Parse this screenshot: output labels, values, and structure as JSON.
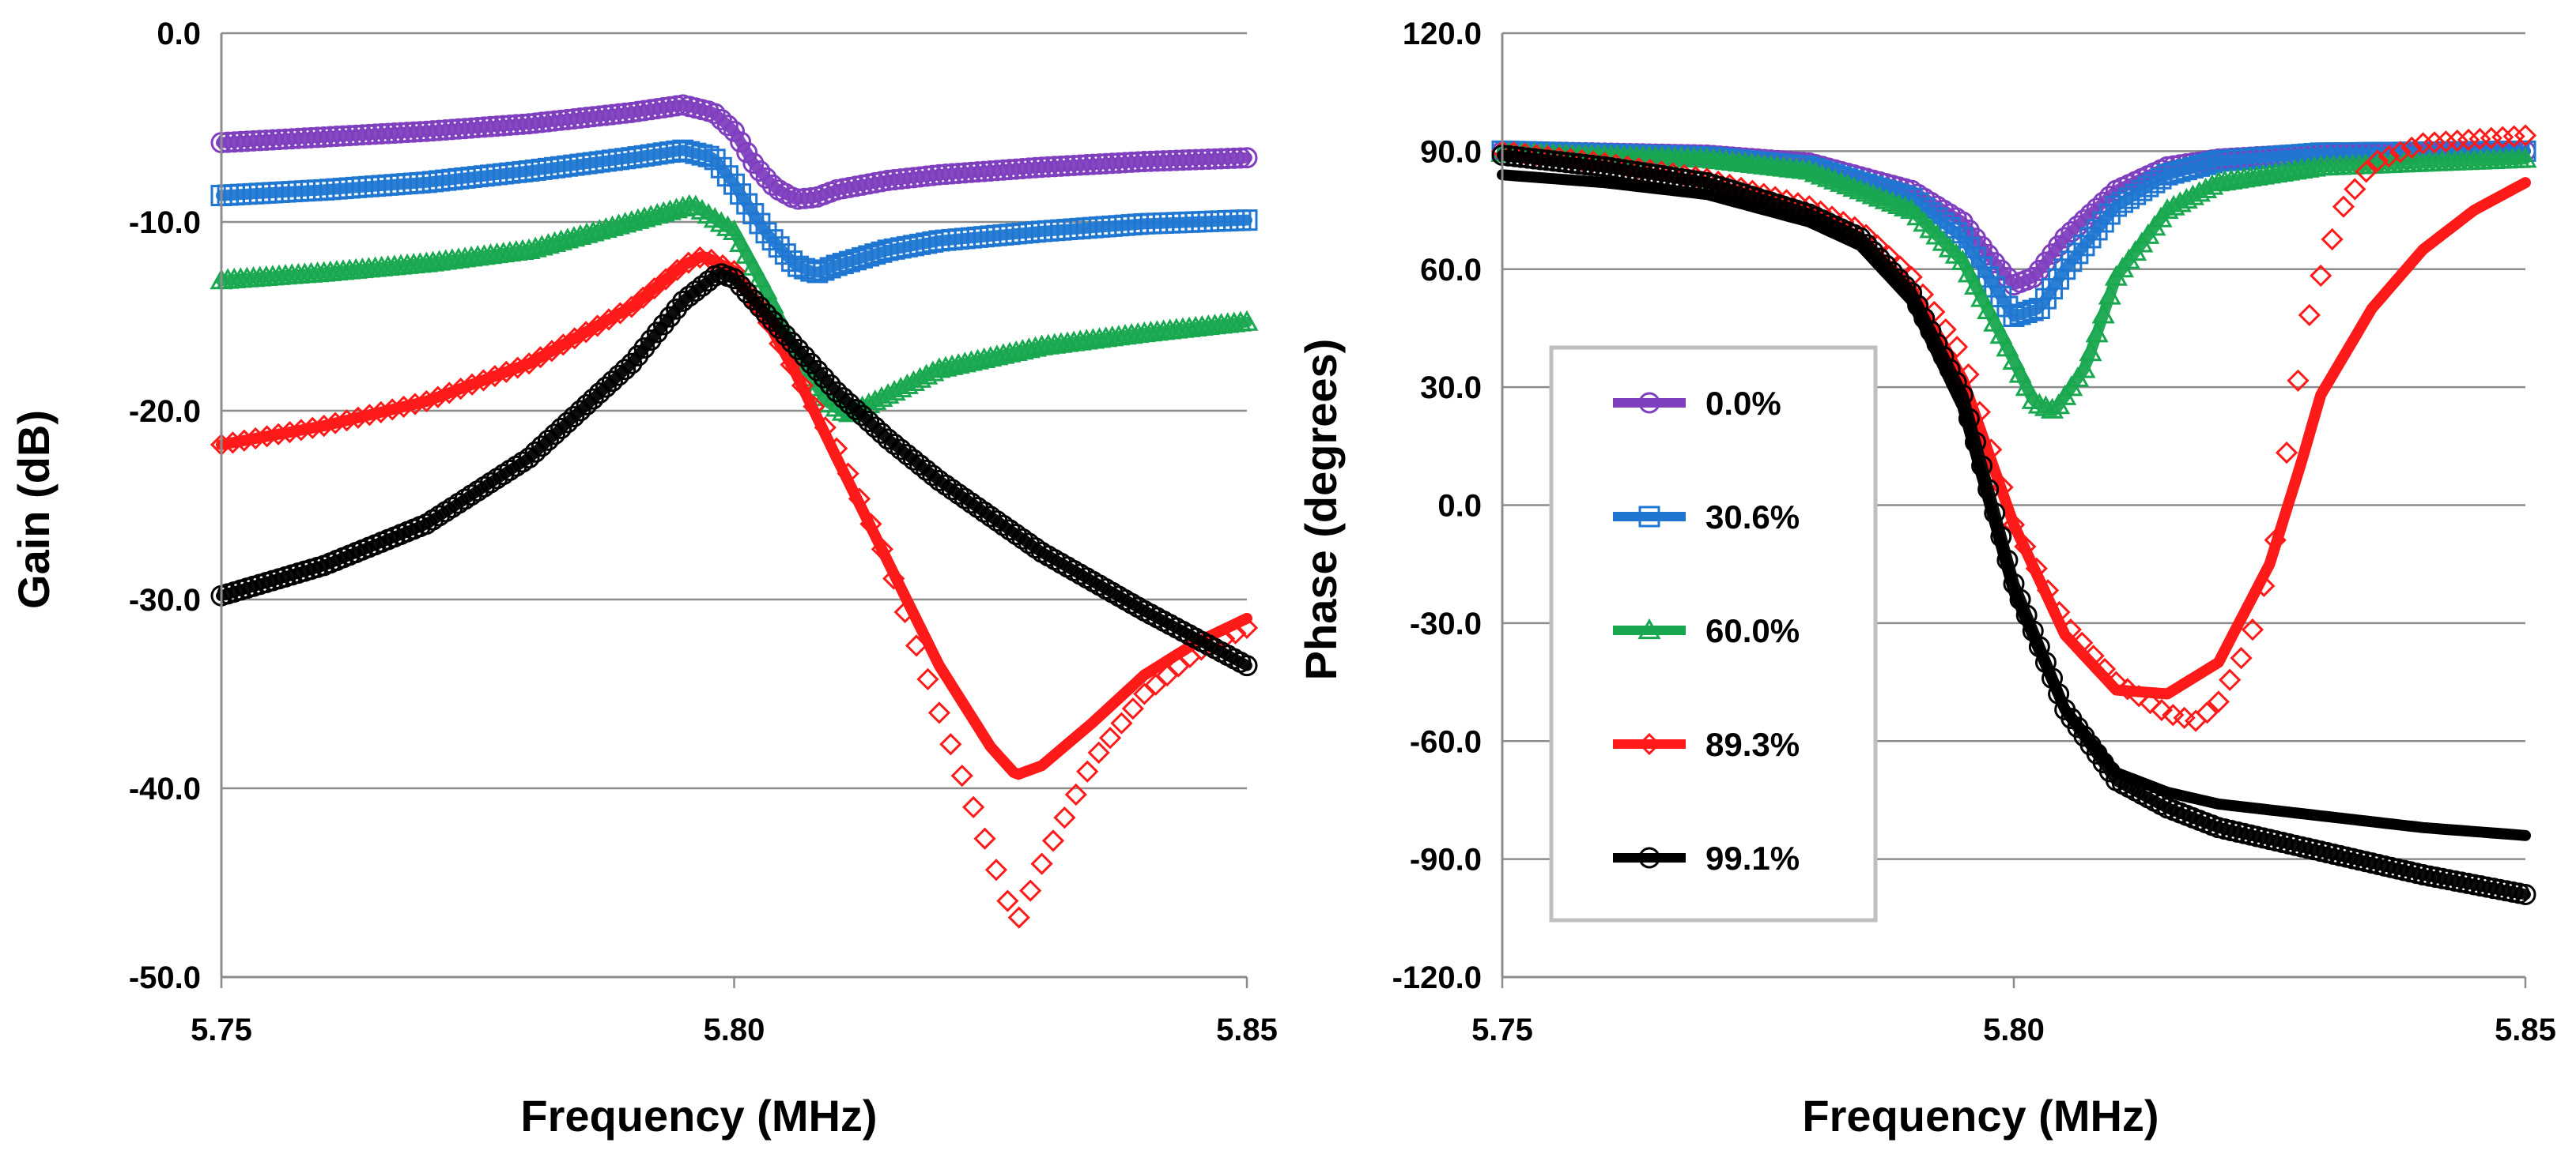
{
  "chart_data": [
    {
      "type": "scatter",
      "title": "",
      "xlabel": "Frequency (MHz)",
      "ylabel": "Gain (dB)",
      "xlim": [
        5.75,
        5.85
      ],
      "ylim": [
        -50,
        0
      ],
      "x_ticks": [
        "5.75",
        "5.80",
        "5.85"
      ],
      "y_ticks": [
        "0.0",
        "-10.0",
        "-20.0",
        "-30.0",
        "-40.0",
        "-50.0"
      ],
      "grid": "horizontal",
      "series": [
        {
          "name": "0.0%",
          "color": "#7f3fbf",
          "marker": "circle",
          "points": [
            [
              5.75,
              -5.8
            ],
            [
              5.76,
              -5.5
            ],
            [
              5.77,
              -5.2
            ],
            [
              5.78,
              -4.8
            ],
            [
              5.79,
              -4.2
            ],
            [
              5.795,
              -3.8
            ],
            [
              5.798,
              -4.2
            ],
            [
              5.8,
              -5.2
            ],
            [
              5.802,
              -7.0
            ],
            [
              5.804,
              -8.2
            ],
            [
              5.806,
              -8.8
            ],
            [
              5.808,
              -8.7
            ],
            [
              5.81,
              -8.3
            ],
            [
              5.815,
              -7.8
            ],
            [
              5.82,
              -7.5
            ],
            [
              5.83,
              -7.1
            ],
            [
              5.84,
              -6.8
            ],
            [
              5.85,
              -6.6
            ]
          ]
        },
        {
          "name": "30.6%",
          "color": "#1f77d2",
          "marker": "square",
          "points": [
            [
              5.75,
              -8.6
            ],
            [
              5.76,
              -8.3
            ],
            [
              5.77,
              -7.9
            ],
            [
              5.78,
              -7.3
            ],
            [
              5.79,
              -6.6
            ],
            [
              5.795,
              -6.2
            ],
            [
              5.798,
              -6.6
            ],
            [
              5.8,
              -8.0
            ],
            [
              5.803,
              -10.5
            ],
            [
              5.806,
              -12.3
            ],
            [
              5.808,
              -12.7
            ],
            [
              5.81,
              -12.3
            ],
            [
              5.815,
              -11.5
            ],
            [
              5.82,
              -11.0
            ],
            [
              5.83,
              -10.5
            ],
            [
              5.84,
              -10.1
            ],
            [
              5.85,
              -9.9
            ]
          ]
        },
        {
          "name": "60.0%",
          "color": "#19a84f",
          "marker": "triangle",
          "points": [
            [
              5.75,
              -13.1
            ],
            [
              5.76,
              -12.7
            ],
            [
              5.77,
              -12.2
            ],
            [
              5.78,
              -11.5
            ],
            [
              5.79,
              -10.0
            ],
            [
              5.796,
              -9.1
            ],
            [
              5.8,
              -10.5
            ],
            [
              5.803,
              -13.5
            ],
            [
              5.806,
              -17.0
            ],
            [
              5.809,
              -19.5
            ],
            [
              5.811,
              -20.2
            ],
            [
              5.813,
              -19.7
            ],
            [
              5.816,
              -18.9
            ],
            [
              5.82,
              -17.8
            ],
            [
              5.83,
              -16.6
            ],
            [
              5.84,
              -15.9
            ],
            [
              5.85,
              -15.3
            ]
          ]
        },
        {
          "name": "89.3%",
          "color": "#ff1a1a",
          "marker": "diamond-open",
          "points": [
            [
              5.75,
              -21.8
            ],
            [
              5.76,
              -20.8
            ],
            [
              5.77,
              -19.5
            ],
            [
              5.78,
              -17.5
            ],
            [
              5.79,
              -14.5
            ],
            [
              5.795,
              -12.3
            ],
            [
              5.797,
              -11.8
            ],
            [
              5.8,
              -12.6
            ],
            [
              5.803,
              -15.0
            ],
            [
              5.806,
              -18.0
            ],
            [
              5.81,
              -22.0
            ],
            [
              5.815,
              -28.0
            ],
            [
              5.82,
              -36.0
            ],
            [
              5.825,
              -43.5
            ],
            [
              5.8275,
              -47.2
            ],
            [
              5.83,
              -44.0
            ],
            [
              5.835,
              -38.5
            ],
            [
              5.84,
              -35.0
            ],
            [
              5.845,
              -32.8
            ],
            [
              5.85,
              -31.5
            ]
          ]
        },
        {
          "name": "89.3%",
          "color": "#ff1a1a",
          "marker": "line",
          "points": [
            [
              5.75,
              -21.8
            ],
            [
              5.76,
              -20.8
            ],
            [
              5.77,
              -19.5
            ],
            [
              5.78,
              -17.5
            ],
            [
              5.79,
              -14.5
            ],
            [
              5.795,
              -12.3
            ],
            [
              5.797,
              -11.8
            ],
            [
              5.8,
              -12.6
            ],
            [
              5.803,
              -15.0
            ],
            [
              5.806,
              -18.0
            ],
            [
              5.81,
              -22.5
            ],
            [
              5.815,
              -28.0
            ],
            [
              5.82,
              -33.5
            ],
            [
              5.825,
              -37.8
            ],
            [
              5.8275,
              -39.3
            ],
            [
              5.83,
              -38.8
            ],
            [
              5.835,
              -36.5
            ],
            [
              5.84,
              -34.0
            ],
            [
              5.845,
              -32.3
            ],
            [
              5.85,
              -31.0
            ]
          ]
        },
        {
          "name": "99.1%",
          "color": "#000000",
          "marker": "circle",
          "points": [
            [
              5.75,
              -29.8
            ],
            [
              5.76,
              -28.2
            ],
            [
              5.77,
              -26.0
            ],
            [
              5.78,
              -22.5
            ],
            [
              5.79,
              -17.5
            ],
            [
              5.795,
              -14.2
            ],
            [
              5.7985,
              -12.7
            ],
            [
              5.8,
              -13.0
            ],
            [
              5.805,
              -16.0
            ],
            [
              5.81,
              -19.0
            ],
            [
              5.815,
              -21.5
            ],
            [
              5.82,
              -23.7
            ],
            [
              5.83,
              -27.5
            ],
            [
              5.84,
              -30.6
            ],
            [
              5.85,
              -33.5
            ]
          ]
        }
      ]
    },
    {
      "type": "scatter",
      "title": "",
      "xlabel": "Frequency (MHz)",
      "ylabel": "Phase (degrees)",
      "xlim": [
        5.75,
        5.85
      ],
      "ylim": [
        -120,
        120
      ],
      "x_ticks": [
        "5.75",
        "5.80",
        "5.85"
      ],
      "y_ticks": [
        "120.0",
        "90.0",
        "60.0",
        "30.0",
        "0.0",
        "-30.0",
        "-60.0",
        "-90.0",
        "-120.0"
      ],
      "grid": "horizontal",
      "legend": {
        "placement": "center-left",
        "entries": [
          {
            "label": "0.0%",
            "color": "#7f3fbf",
            "marker": "circle"
          },
          {
            "label": "30.6%",
            "color": "#1f77d2",
            "marker": "square"
          },
          {
            "label": "60.0%",
            "color": "#19a84f",
            "marker": "triangle"
          },
          {
            "label": "89.3%",
            "color": "#ff1a1a",
            "marker": "diamond-open"
          },
          {
            "label": "99.1%",
            "color": "#000000",
            "marker": "circle"
          }
        ]
      },
      "series": [
        {
          "name": "0.0%",
          "color": "#7f3fbf",
          "marker": "circle",
          "points": [
            [
              5.75,
              90
            ],
            [
              5.77,
              89
            ],
            [
              5.78,
              87
            ],
            [
              5.79,
              80
            ],
            [
              5.795,
              72
            ],
            [
              5.798,
              62
            ],
            [
              5.8,
              56
            ],
            [
              5.802,
              58
            ],
            [
              5.805,
              68
            ],
            [
              5.81,
              80
            ],
            [
              5.815,
              86
            ],
            [
              5.82,
              88
            ],
            [
              5.83,
              89.5
            ],
            [
              5.85,
              90
            ]
          ]
        },
        {
          "name": "30.6%",
          "color": "#1f77d2",
          "marker": "square",
          "points": [
            [
              5.75,
              90
            ],
            [
              5.77,
              88.5
            ],
            [
              5.78,
              86
            ],
            [
              5.79,
              78
            ],
            [
              5.795,
              68
            ],
            [
              5.798,
              56
            ],
            [
              5.8,
              48
            ],
            [
              5.8025,
              50
            ],
            [
              5.805,
              60
            ],
            [
              5.81,
              76
            ],
            [
              5.815,
              84
            ],
            [
              5.82,
              87.5
            ],
            [
              5.83,
              89.5
            ],
            [
              5.85,
              90
            ]
          ]
        },
        {
          "name": "60.0%",
          "color": "#19a84f",
          "marker": "triangle",
          "points": [
            [
              5.75,
              89.5
            ],
            [
              5.77,
              88
            ],
            [
              5.78,
              85
            ],
            [
              5.79,
              75
            ],
            [
              5.795,
              62
            ],
            [
              5.799,
              42
            ],
            [
              5.802,
              26
            ],
            [
              5.804,
              24
            ],
            [
              5.807,
              35
            ],
            [
              5.81,
              58
            ],
            [
              5.815,
              75
            ],
            [
              5.82,
              82
            ],
            [
              5.83,
              86
            ],
            [
              5.85,
              88
            ]
          ]
        },
        {
          "name": "89.3%",
          "color": "#ff1a1a",
          "marker": "diamond-open",
          "points": [
            [
              5.75,
              90
            ],
            [
              5.76,
              87
            ],
            [
              5.77,
              83
            ],
            [
              5.78,
              76
            ],
            [
              5.785,
              70
            ],
            [
              5.79,
              58
            ],
            [
              5.795,
              38
            ],
            [
              5.8,
              -5
            ],
            [
              5.805,
              -30
            ],
            [
              5.81,
              -45
            ],
            [
              5.815,
              -53
            ],
            [
              5.818,
              -55
            ],
            [
              5.82,
              -50
            ],
            [
              5.823,
              -35
            ],
            [
              5.8255,
              -10
            ],
            [
              5.827,
              20
            ],
            [
              5.829,
              50
            ],
            [
              5.832,
              75
            ],
            [
              5.835,
              87
            ],
            [
              5.84,
              92
            ],
            [
              5.85,
              94
            ]
          ]
        },
        {
          "name": "89.3%",
          "color": "#ff1a1a",
          "marker": "line",
          "points": [
            [
              5.75,
              89
            ],
            [
              5.76,
              86
            ],
            [
              5.77,
              82
            ],
            [
              5.78,
              75
            ],
            [
              5.785,
              68
            ],
            [
              5.79,
              55
            ],
            [
              5.795,
              32
            ],
            [
              5.8,
              -5
            ],
            [
              5.805,
              -33
            ],
            [
              5.81,
              -47
            ],
            [
              5.815,
              -48
            ],
            [
              5.82,
              -40
            ],
            [
              5.825,
              -15
            ],
            [
              5.828,
              10
            ],
            [
              5.83,
              28
            ],
            [
              5.835,
              50
            ],
            [
              5.84,
              65
            ],
            [
              5.845,
              75
            ],
            [
              5.85,
              82
            ]
          ]
        },
        {
          "name": "99.1%",
          "color": "#000000",
          "marker": "circle",
          "points": [
            [
              5.75,
              89
            ],
            [
              5.76,
              86
            ],
            [
              5.77,
              82
            ],
            [
              5.78,
              74
            ],
            [
              5.785,
              68
            ],
            [
              5.79,
              54
            ],
            [
              5.795,
              28
            ],
            [
              5.8,
              -20
            ],
            [
              5.805,
              -52
            ],
            [
              5.81,
              -70
            ],
            [
              5.815,
              -77
            ],
            [
              5.82,
              -82
            ],
            [
              5.83,
              -88
            ],
            [
              5.84,
              -94
            ],
            [
              5.85,
              -99
            ]
          ]
        },
        {
          "name": "99.1%",
          "color": "#000000",
          "marker": "line",
          "points": [
            [
              5.75,
              84
            ],
            [
              5.76,
              82
            ],
            [
              5.77,
              79
            ],
            [
              5.78,
              72
            ],
            [
              5.785,
              66
            ],
            [
              5.79,
              52
            ],
            [
              5.795,
              25
            ],
            [
              5.8,
              -22
            ],
            [
              5.805,
              -52
            ],
            [
              5.81,
              -68
            ],
            [
              5.815,
              -73
            ],
            [
              5.82,
              -76
            ],
            [
              5.83,
              -79
            ],
            [
              5.84,
              -82
            ],
            [
              5.85,
              -84
            ]
          ]
        }
      ]
    }
  ]
}
